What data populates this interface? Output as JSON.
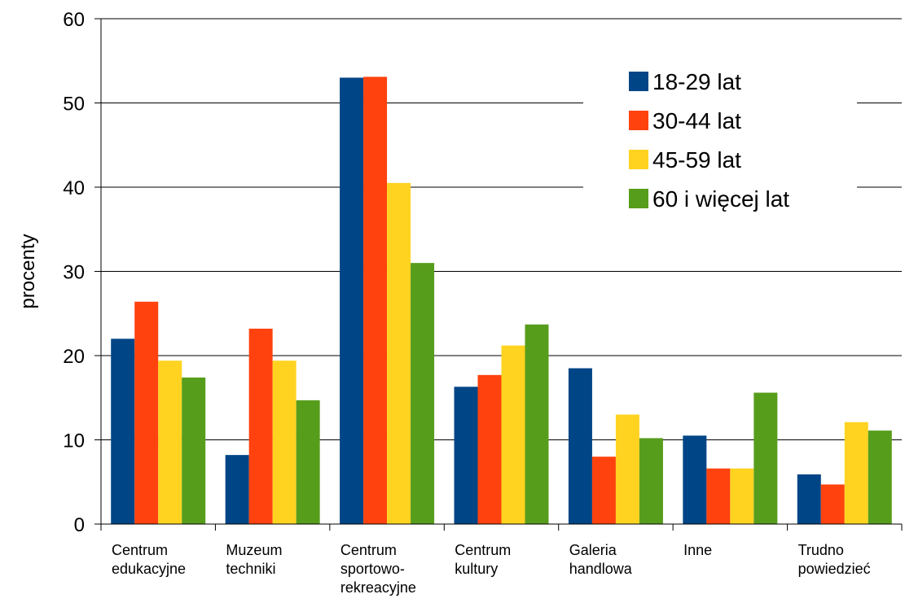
{
  "chart_data": {
    "type": "bar",
    "ylabel": "procenty",
    "xlabel": "",
    "ylim": [
      0,
      60
    ],
    "yticks": [
      0,
      10,
      20,
      30,
      40,
      50,
      60
    ],
    "grid": true,
    "legend_position": "top-right",
    "categories": [
      [
        "Centrum",
        "edukacyjne"
      ],
      [
        "Muzeum",
        "techniki"
      ],
      [
        "Centrum",
        "sportowo-",
        "rekreacyjne"
      ],
      [
        "Centrum",
        "kultury"
      ],
      [
        "Galeria",
        "handlowa"
      ],
      [
        "Inne"
      ],
      [
        "Trudno",
        "powiedzieć"
      ]
    ],
    "series": [
      {
        "name": "18-29 lat",
        "color": "#004586",
        "values": [
          22,
          8.2,
          53,
          16.3,
          18.5,
          10.5,
          5.9
        ]
      },
      {
        "name": "30-44 lat",
        "color": "#ff420e",
        "values": [
          26.4,
          23.2,
          53.1,
          17.7,
          8,
          6.6,
          4.7
        ]
      },
      {
        "name": "45-59 lat",
        "color": "#ffd320",
        "values": [
          19.4,
          19.4,
          40.5,
          21.2,
          13,
          6.6,
          12.1
        ]
      },
      {
        "name": "60 i więcej lat",
        "color": "#579d1c",
        "values": [
          17.4,
          14.7,
          31,
          23.7,
          10.2,
          15.6,
          11.1
        ]
      }
    ]
  }
}
